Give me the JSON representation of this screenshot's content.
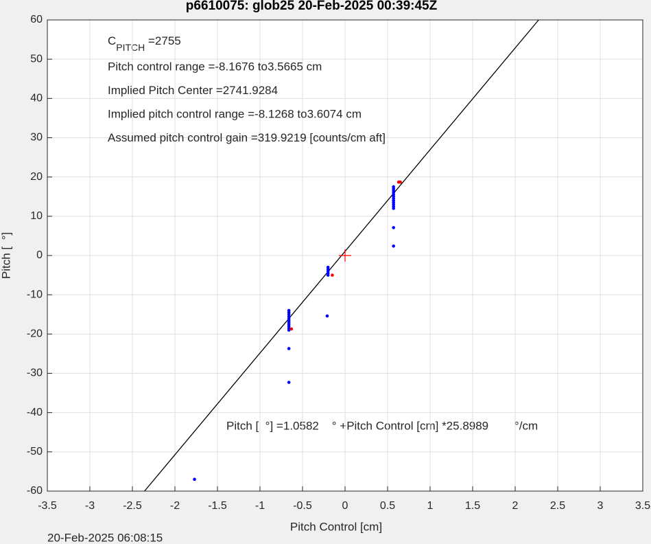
{
  "chart_data": {
    "type": "scatter",
    "title": "p6610075: glob25 20-Feb-2025 00:39:45Z",
    "x_label": "Pitch Control [cm]",
    "y_label": "Pitch [  °]",
    "timestamp": "20-Feb-2025 06:08:15",
    "xlim": [
      -3.5,
      3.5
    ],
    "ylim": [
      -60,
      60
    ],
    "xticks": [
      -3.5,
      -3,
      -2.5,
      -2,
      -1.5,
      -1,
      -0.5,
      0,
      0.5,
      1,
      1.5,
      2,
      2.5,
      3,
      3.5
    ],
    "yticks": [
      -60,
      -50,
      -40,
      -30,
      -20,
      -10,
      0,
      10,
      20,
      30,
      40,
      50,
      60
    ],
    "grid": true,
    "annotations": {
      "c_pitch": {
        "text": "C",
        "subscript": "PITCH",
        "rest": " =2755"
      },
      "lines": [
        "Pitch control range =-8.1676 to3.5665 cm",
        "Implied Pitch Center =2741.9284",
        "Implied pitch control range =-8.1268 to3.6074 cm",
        "Assumed pitch control gain =319.9219 [counts/cm aft]"
      ],
      "equation": "Pitch [  °] =1.0582    ° +Pitch Control [cm] *25.8989        °/cm"
    },
    "fit": {
      "intercept": 1.0582,
      "slope": 25.8989,
      "color": "#000000"
    },
    "center_marker": {
      "x": 0,
      "y": 0,
      "color": "#ff0000"
    },
    "series": [
      {
        "color": "#0000ff",
        "x": [
          -0.66,
          -0.66,
          -0.66,
          -0.66,
          -0.66,
          -0.66,
          -0.66,
          -0.66,
          -0.66,
          -0.66,
          -0.66,
          -0.66,
          -0.66,
          -0.2,
          -0.2,
          -0.2,
          -0.2,
          -0.2,
          -0.21,
          0.57,
          0.57,
          0.57,
          0.57,
          0.57,
          0.57,
          0.57,
          0.57,
          0.57,
          0.57,
          0.57,
          0.57,
          0.57,
          0.57,
          -1.77
        ],
        "values": [
          -14,
          -14.5,
          -15,
          -15.5,
          -16,
          -16.5,
          -17,
          -17.5,
          -18,
          -18.5,
          -19,
          -23.7,
          -32.3,
          -3,
          -3.5,
          -4,
          -4.5,
          -5,
          -15.4,
          2.4,
          7.1,
          12,
          12.5,
          13,
          13.5,
          14,
          14.5,
          15,
          15.5,
          16,
          16.5,
          17,
          17.5,
          -57
        ]
      },
      {
        "color": "#ff0000",
        "x": [
          0.63,
          0.65,
          -0.63,
          -0.15
        ],
        "values": [
          18.7,
          18.7,
          -18.7,
          -5
        ]
      }
    ]
  }
}
